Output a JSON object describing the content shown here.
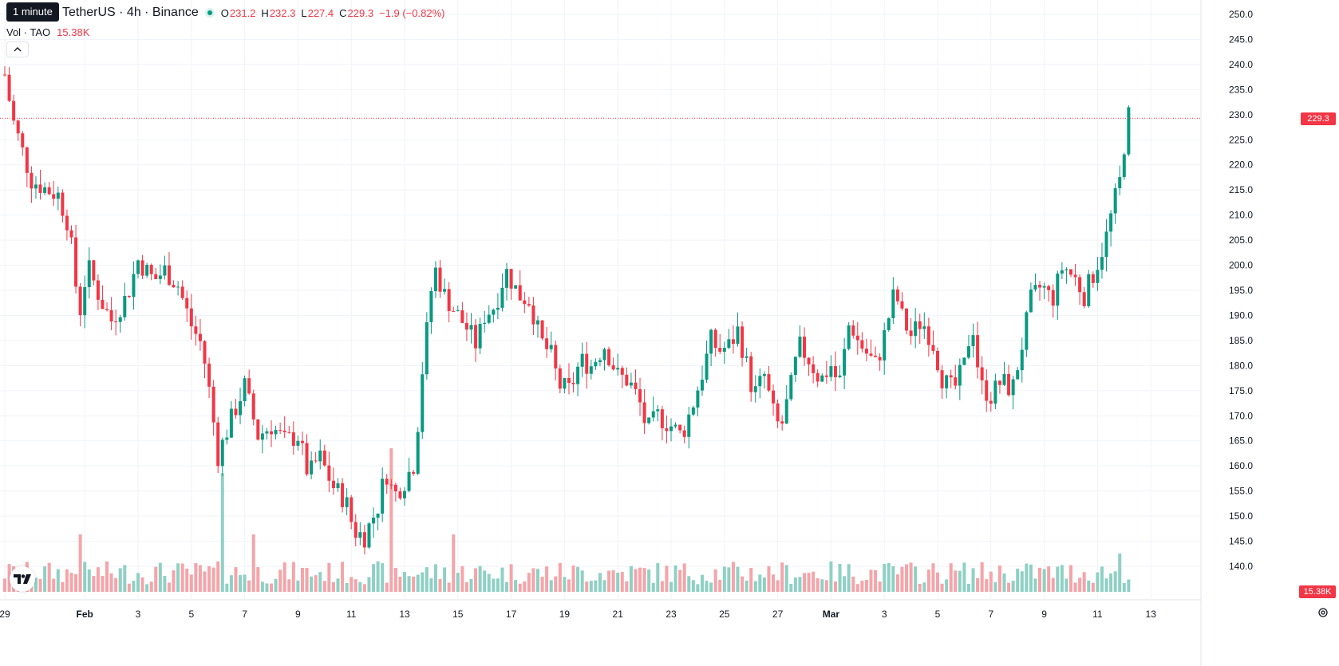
{
  "tooltip": "1 minute",
  "symbol": "TetherUS · 4h · Binance",
  "ohlc": {
    "open_key": "O",
    "open": "231.2",
    "high_key": "H",
    "high": "232.3",
    "low_key": "L",
    "low": "227.4",
    "close_key": "C",
    "close": "229.3",
    "change": "−1.9 (−0.82%)"
  },
  "volume": {
    "label": "Vol · TAO",
    "value": "15.38K"
  },
  "price_axis_label": "229.3",
  "volume_axis_label": "15.38K",
  "colors": {
    "up": "#089981",
    "down": "#f23645",
    "up_vol": "#8fd0c4",
    "down_vol": "#f5a4a9"
  },
  "icons": {
    "collapse": "chevron-up-icon",
    "logo": "tradingview-logo-icon",
    "settings": "gear-icon"
  },
  "chart_data": {
    "type": "candlestick",
    "yticks": [
      "250.0",
      "245.0",
      "240.0",
      "235.0",
      "230.0",
      "225.0",
      "220.0",
      "215.0",
      "210.0",
      "205.0",
      "200.0",
      "195.0",
      "190.0",
      "185.0",
      "180.0",
      "175.0",
      "170.0",
      "165.0",
      "160.0",
      "155.0",
      "150.0",
      "145.0",
      "140.0"
    ],
    "ylim": [
      138.0,
      251.0
    ],
    "last_price": 229.3,
    "x_labels": [
      {
        "day": 0,
        "label": "29"
      },
      {
        "day": 3,
        "label": "Feb",
        "bold": true
      },
      {
        "day": 5,
        "label": "3"
      },
      {
        "day": 7,
        "label": "5"
      },
      {
        "day": 9,
        "label": "7"
      },
      {
        "day": 11,
        "label": "9"
      },
      {
        "day": 13,
        "label": "11"
      },
      {
        "day": 15,
        "label": "13"
      },
      {
        "day": 17,
        "label": "15"
      },
      {
        "day": 19,
        "label": "17"
      },
      {
        "day": 21,
        "label": "19"
      },
      {
        "day": 23,
        "label": "21"
      },
      {
        "day": 25,
        "label": "23"
      },
      {
        "day": 27,
        "label": "25"
      },
      {
        "day": 29,
        "label": "27"
      },
      {
        "day": 31,
        "label": "Mar",
        "bold": true
      },
      {
        "day": 33,
        "label": "3"
      },
      {
        "day": 35,
        "label": "5"
      },
      {
        "day": 37,
        "label": "7"
      },
      {
        "day": 39,
        "label": "9"
      },
      {
        "day": 41,
        "label": "11"
      },
      {
        "day": 43,
        "label": "13"
      }
    ],
    "close_path": [
      [
        0,
        238
      ],
      [
        0.3,
        229
      ],
      [
        1,
        217
      ],
      [
        1.6,
        215
      ],
      [
        2,
        214
      ],
      [
        2.4,
        208
      ],
      [
        2.8,
        190
      ],
      [
        3.1,
        200
      ],
      [
        3.6,
        193
      ],
      [
        4,
        189
      ],
      [
        4.6,
        194
      ],
      [
        5,
        201
      ],
      [
        5.6,
        197
      ],
      [
        6,
        199
      ],
      [
        6.5,
        196
      ],
      [
        7,
        188
      ],
      [
        7.4,
        184
      ],
      [
        7.7,
        174
      ],
      [
        8,
        162
      ],
      [
        8.4,
        168
      ],
      [
        9,
        176
      ],
      [
        9.5,
        166
      ],
      [
        10,
        168
      ],
      [
        10.5,
        165
      ],
      [
        11,
        166
      ],
      [
        11.4,
        158
      ],
      [
        11.8,
        162
      ],
      [
        12.3,
        156
      ],
      [
        12.8,
        153
      ],
      [
        13.1,
        147
      ],
      [
        13.5,
        146
      ],
      [
        14,
        152
      ],
      [
        14.3,
        159
      ],
      [
        14.6,
        154
      ],
      [
        15,
        157
      ],
      [
        15.4,
        161
      ],
      [
        15.6,
        176
      ],
      [
        15.9,
        190
      ],
      [
        16.1,
        200
      ],
      [
        16.5,
        194
      ],
      [
        17,
        190
      ],
      [
        17.4,
        187
      ],
      [
        17.7,
        184
      ],
      [
        18,
        190
      ],
      [
        18.4,
        192
      ],
      [
        18.8,
        199
      ],
      [
        19.3,
        194
      ],
      [
        19.7,
        193
      ],
      [
        20.1,
        185
      ],
      [
        20.5,
        182
      ],
      [
        20.8,
        176
      ],
      [
        21.2,
        175
      ],
      [
        21.6,
        181
      ],
      [
        22,
        180
      ],
      [
        22.5,
        184
      ],
      [
        23,
        178
      ],
      [
        23.4,
        177
      ],
      [
        23.8,
        173
      ],
      [
        24.1,
        167
      ],
      [
        24.5,
        170
      ],
      [
        25,
        168
      ],
      [
        25.4,
        166
      ],
      [
        25.8,
        172
      ],
      [
        26.2,
        179
      ],
      [
        26.5,
        185
      ],
      [
        26.8,
        183
      ],
      [
        27.2,
        184
      ],
      [
        27.5,
        187
      ],
      [
        27.8,
        181
      ],
      [
        28.1,
        174
      ],
      [
        28.5,
        178
      ],
      [
        28.8,
        171
      ],
      [
        29.1,
        167
      ],
      [
        29.5,
        176
      ],
      [
        29.8,
        184
      ],
      [
        30.2,
        181
      ],
      [
        30.6,
        177
      ],
      [
        31,
        180
      ],
      [
        31.3,
        176
      ],
      [
        31.7,
        189
      ],
      [
        32,
        185
      ],
      [
        32.4,
        182
      ],
      [
        32.7,
        180
      ],
      [
        33,
        186
      ],
      [
        33.4,
        195
      ],
      [
        33.7,
        189
      ],
      [
        34,
        186
      ],
      [
        34.4,
        189
      ],
      [
        34.8,
        185
      ],
      [
        35.2,
        177
      ],
      [
        35.6,
        175
      ],
      [
        36,
        180
      ],
      [
        36.3,
        189
      ],
      [
        36.6,
        176
      ],
      [
        37,
        174
      ],
      [
        37.4,
        177
      ],
      [
        37.8,
        175
      ],
      [
        38.2,
        185
      ],
      [
        38.5,
        193
      ],
      [
        38.9,
        196
      ],
      [
        39.3,
        193
      ],
      [
        39.7,
        200
      ],
      [
        40.2,
        197
      ],
      [
        40.5,
        194
      ],
      [
        40.9,
        199
      ],
      [
        41.3,
        205
      ],
      [
        41.6,
        212
      ],
      [
        41.9,
        218
      ],
      [
        42.1,
        230
      ],
      [
        42.3,
        229.3
      ]
    ],
    "volume_spikes": [
      {
        "day": 14.5,
        "rel": 0.75
      },
      {
        "day": 8.1,
        "rel": 0.62
      },
      {
        "day": 9.4,
        "rel": 0.3
      },
      {
        "day": 2.9,
        "rel": 0.3
      },
      {
        "day": 16.9,
        "rel": 0.3
      },
      {
        "day": 41.9,
        "rel": 0.2
      }
    ],
    "day_range": [
      0,
      43.2
    ]
  }
}
